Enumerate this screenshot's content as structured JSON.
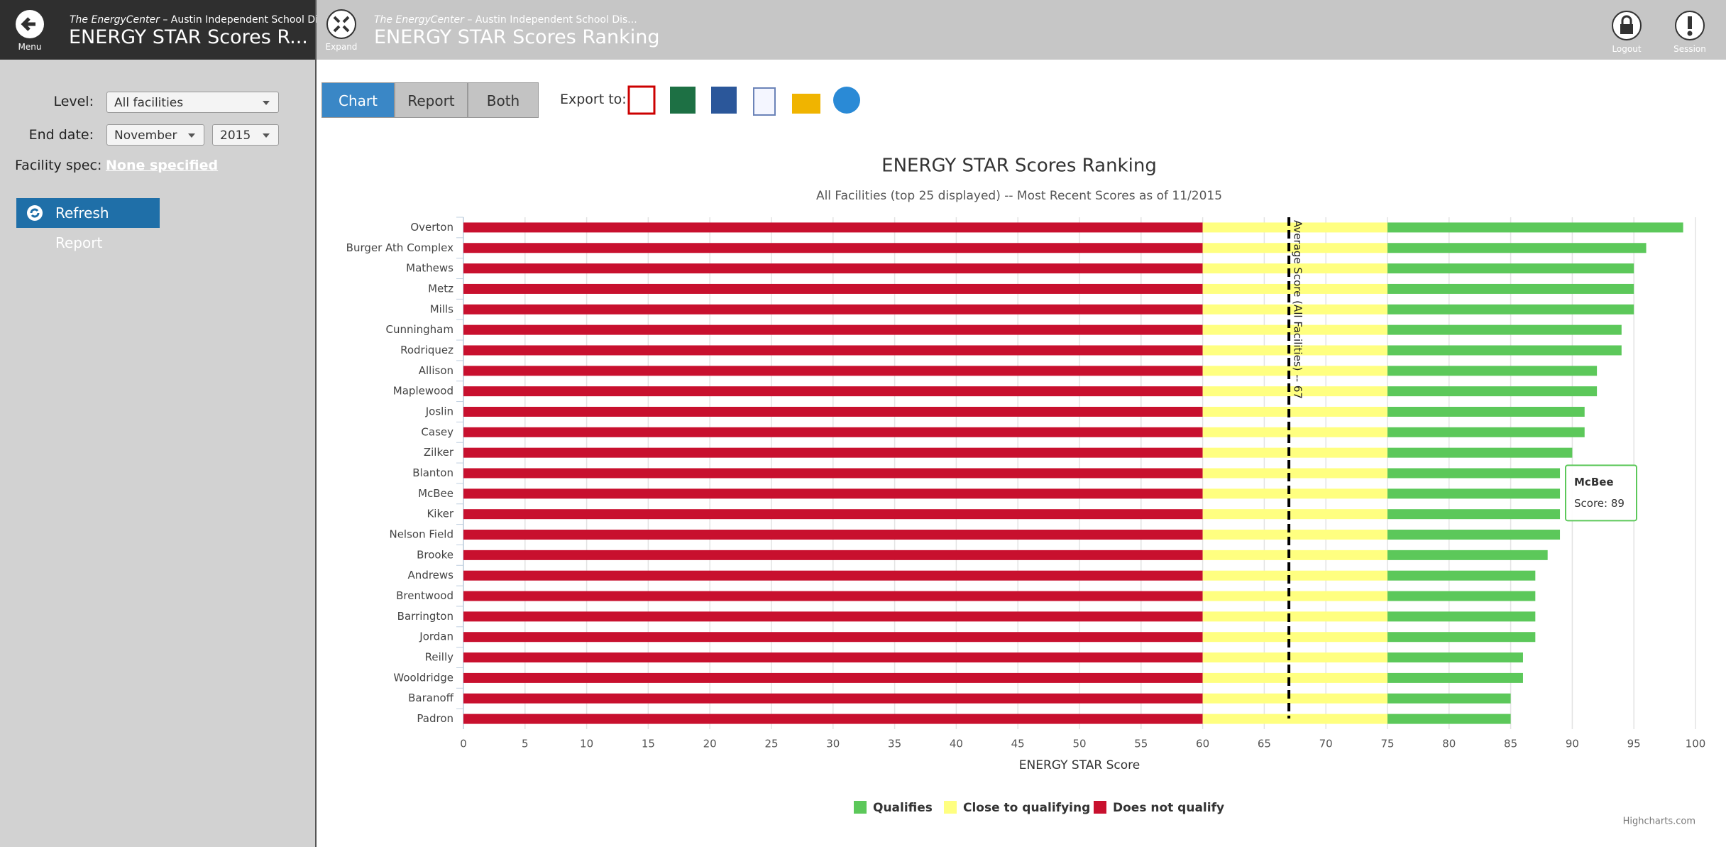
{
  "sidebar": {
    "menu_label": "Menu",
    "app_name": "The EnergyCenter",
    "org": " – Austin Independent School Dis...",
    "title": "ENERGY STAR Scores R..."
  },
  "header": {
    "expand_label": "Expand",
    "app_name": "The EnergyCenter",
    "org": " – Austin Independent School Dis...",
    "title": "ENERGY STAR Scores Ranking",
    "logout": "Logout",
    "session": "Session"
  },
  "form": {
    "level_label": "Level:",
    "level_value": "All facilities",
    "end_date_label": "End date:",
    "month": "November",
    "year": "2015",
    "facility_spec_label": "Facility spec:",
    "facility_spec_value": "None specified",
    "refresh_button": "Refresh Report"
  },
  "toolbar": {
    "tabs": [
      "Chart",
      "Report",
      "Both"
    ],
    "export_label": "Export to:"
  },
  "chart_data": {
    "type": "stacked-bar-horizontal",
    "title": "ENERGY STAR Scores Ranking",
    "subtitle": "All Facilities (top 25 displayed) -- Most Recent Scores as of 11/2015",
    "x_axis_label": "ENERGY STAR Score",
    "categories": [
      "Overton",
      "Burger Ath Complex",
      "Mathews",
      "Metz",
      "Mills",
      "Cunningham",
      "Rodriquez",
      "Allison",
      "Maplewood",
      "Joslin",
      "Casey",
      "Zilker",
      "Blanton",
      "McBee",
      "Kiker",
      "Nelson Field",
      "Brooke",
      "Andrews",
      "Brentwood",
      "Barrington",
      "Jordan",
      "Reilly",
      "Wooldridge",
      "Baranoff",
      "Padron"
    ],
    "series": [
      {
        "name": "Qualifies",
        "color": "#5cc85a",
        "values": [
          24,
          21,
          20,
          20,
          20,
          19,
          19,
          17,
          17,
          16,
          16,
          15,
          14,
          14,
          14,
          14,
          13,
          12,
          12,
          12,
          12,
          11,
          11,
          10,
          10
        ]
      },
      {
        "name": "Close to qualifying",
        "color": "#ffff80",
        "values": [
          15,
          15,
          15,
          15,
          15,
          15,
          15,
          15,
          15,
          15,
          15,
          15,
          15,
          15,
          15,
          15,
          15,
          15,
          15,
          15,
          15,
          15,
          15,
          15,
          15
        ]
      },
      {
        "name": "Does not qualify",
        "color": "#c8102e",
        "values": [
          60,
          60,
          60,
          60,
          60,
          60,
          60,
          60,
          60,
          60,
          60,
          60,
          60,
          60,
          60,
          60,
          60,
          60,
          60,
          60,
          60,
          60,
          60,
          60,
          60
        ]
      }
    ],
    "xlim": [
      0,
      100
    ],
    "xticks": [
      0,
      5,
      10,
      15,
      20,
      25,
      30,
      35,
      40,
      45,
      50,
      55,
      60,
      65,
      70,
      75,
      80,
      85,
      90,
      95,
      100
    ],
    "grid": true,
    "average_line": {
      "value": 67,
      "label": "Average Score (All Facilities) -- 67"
    },
    "tooltip": {
      "title": "McBee",
      "text": "Score: 89"
    },
    "legend": "bottom",
    "credit": "Highcharts.com"
  }
}
